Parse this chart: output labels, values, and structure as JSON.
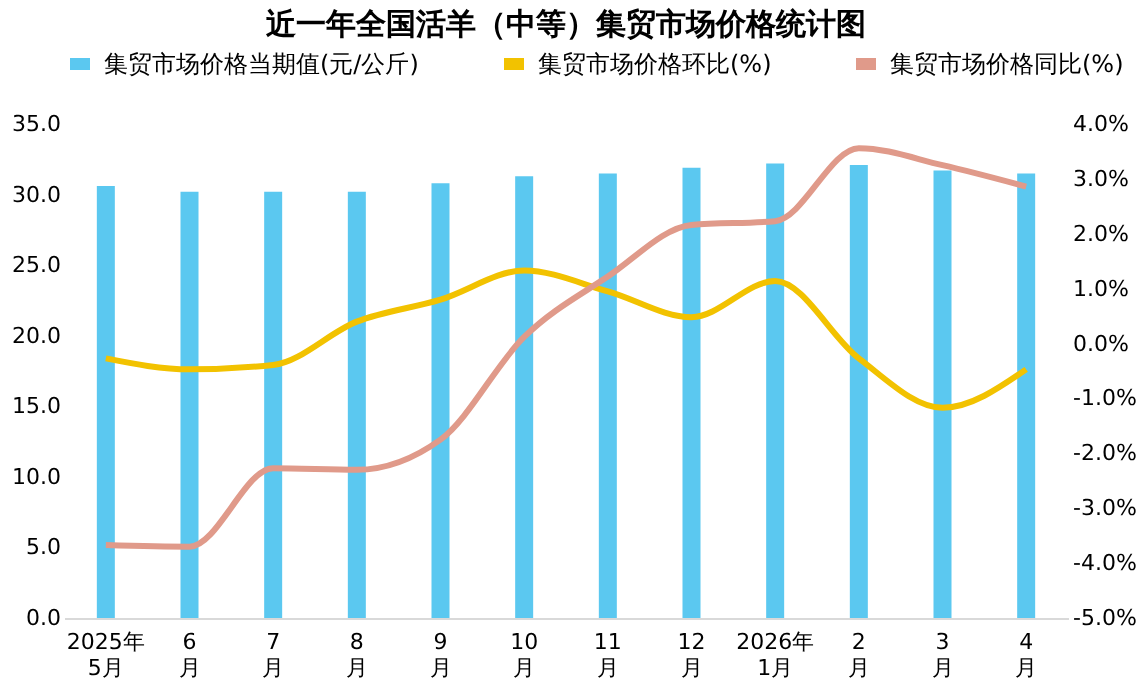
{
  "chart_data": {
    "type": "bar",
    "title": "近一年全国活羊（中等）集贸市场价格统计图",
    "categories": [
      "2025年\n5月",
      "6\n月",
      "7\n月",
      "8\n月",
      "9\n月",
      "10\n月",
      "11\n月",
      "12\n月",
      "2026年\n1月",
      "2\n月",
      "3\n月",
      "4\n月"
    ],
    "series": [
      {
        "name": "集贸市场价格当期值(元/公斤)",
        "color": "#5bc8f0",
        "values": [
          30.6,
          30.2,
          30.2,
          30.2,
          30.8,
          31.3,
          31.5,
          31.9,
          32.2,
          32.1,
          31.7,
          31.5
        ]
      },
      {
        "name": "集贸市场价格环比(%)",
        "type": "line",
        "axis": "y2",
        "color": "#f2c200",
        "values": [
          -0.27,
          -0.47,
          -0.39,
          0.4,
          0.8,
          1.33,
          0.95,
          0.48,
          1.14,
          -0.27,
          -1.17,
          -0.47
        ]
      },
      {
        "name": "集贸市场价格同比(%)",
        "type": "line",
        "axis": "y2",
        "color": "#e09a8a",
        "values": [
          -3.67,
          -3.7,
          -2.27,
          -2.3,
          -1.75,
          0.12,
          1.22,
          2.16,
          2.23,
          3.56,
          3.25,
          2.86
        ]
      }
    ],
    "ylim": [
      0,
      35
    ],
    "yticks": [
      {
        "value": 0,
        "label": "0.0"
      },
      {
        "value": 5,
        "label": "5.0"
      },
      {
        "value": 10,
        "label": "10.0"
      },
      {
        "value": 15,
        "label": "15.0"
      },
      {
        "value": 20,
        "label": "20.0"
      },
      {
        "value": 25,
        "label": "25.0"
      },
      {
        "value": 30,
        "label": "30.0"
      },
      {
        "value": 35,
        "label": "35.0"
      }
    ],
    "y2lim": [
      -5,
      4
    ],
    "y2ticks": [
      {
        "value": -5,
        "label": "-5.0%"
      },
      {
        "value": -4,
        "label": "-4.0%"
      },
      {
        "value": -3,
        "label": "-3.0%"
      },
      {
        "value": -2,
        "label": "-2.0%"
      },
      {
        "value": -1,
        "label": "-1.0%"
      },
      {
        "value": 0,
        "label": "0.0%"
      },
      {
        "value": 1,
        "label": "1.0%"
      },
      {
        "value": 2,
        "label": "2.0%"
      },
      {
        "value": 3,
        "label": "3.0%"
      },
      {
        "value": 4,
        "label": "4.0%"
      }
    ],
    "legend": "top",
    "grid": false
  }
}
